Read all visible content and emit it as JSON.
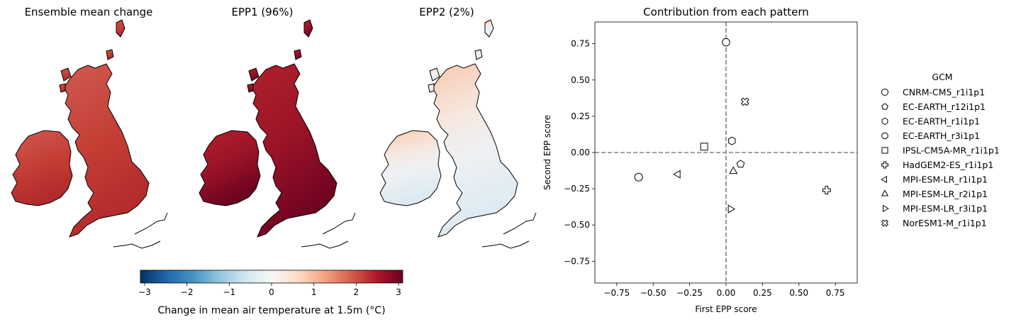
{
  "maps": [
    {
      "title": "Ensemble mean change",
      "fill": "#c0392f",
      "gradient": "mean"
    },
    {
      "title": "EPP1 (96%)",
      "fill": "#9e1428",
      "gradient": "epp1"
    },
    {
      "title": "EPP2 (2%)",
      "fill": "#f2f0ef",
      "gradient": "epp2"
    }
  ],
  "colorbar": {
    "label": "Change in mean air temperature at 1.5m (°C)",
    "ticks": [
      "−3",
      "−2",
      "−1",
      "0",
      "1",
      "2",
      "3"
    ],
    "range": [
      -3.1,
      3.1
    ],
    "colors": [
      "#053061",
      "#2166ac",
      "#4393c3",
      "#92c5de",
      "#d1e5f0",
      "#f7f7f7",
      "#fddbc7",
      "#f4a582",
      "#d6604d",
      "#b2182b",
      "#67001f"
    ]
  },
  "chart_data": {
    "type": "scatter",
    "title": "Contribution from each pattern",
    "xlabel": "First EPP score",
    "ylabel": "Second EPP score",
    "xlim": [
      -0.9,
      0.9
    ],
    "ylim": [
      -0.9,
      0.9
    ],
    "xticks": [
      "−0.75",
      "−0.50",
      "−0.25",
      "0.00",
      "0.25",
      "0.50",
      "0.75"
    ],
    "yticks": [
      "0.75",
      "0.50",
      "0.25",
      "0.00",
      "−0.25",
      "−0.50",
      "−0.75"
    ],
    "xtick_values": [
      -0.75,
      -0.5,
      -0.25,
      0,
      0.25,
      0.5,
      0.75
    ],
    "ytick_values": [
      0.75,
      0.5,
      0.25,
      0,
      -0.25,
      -0.5,
      -0.75
    ],
    "grid": false,
    "reference_lines": {
      "x": 0,
      "y": 0,
      "style": "dashed",
      "color": "#808080"
    },
    "legend": {
      "title": "GCM",
      "placement": "outside-right"
    },
    "series": [
      {
        "name": "CNRM-CM5_r1i1p1",
        "marker": "circle",
        "x": -0.6,
        "y": -0.17
      },
      {
        "name": "EC-EARTH_r12i1p1",
        "marker": "pentagon",
        "x": 0.1,
        "y": -0.08
      },
      {
        "name": "EC-EARTH_r1i1p1",
        "marker": "hexagon",
        "x": 0.04,
        "y": 0.08
      },
      {
        "name": "EC-EARTH_r3i1p1",
        "marker": "octagon",
        "x": 0.0,
        "y": 0.76
      },
      {
        "name": "IPSL-CM5A-MR_r1i1p1",
        "marker": "square",
        "x": -0.15,
        "y": 0.04
      },
      {
        "name": "HadGEM2-ES_r1i1p1",
        "marker": "plus",
        "x": 0.69,
        "y": -0.26
      },
      {
        "name": "MPI-ESM-LR_r1i1p1",
        "marker": "triangle-left",
        "x": -0.33,
        "y": -0.15
      },
      {
        "name": "MPI-ESM-LR_r2i1p1",
        "marker": "triangle-up",
        "x": 0.05,
        "y": -0.13
      },
      {
        "name": "MPI-ESM-LR_r3i1p1",
        "marker": "triangle-right",
        "x": 0.03,
        "y": -0.39
      },
      {
        "name": "NorESM1-M_r1i1p1",
        "marker": "x-filled",
        "x": 0.13,
        "y": 0.35
      }
    ]
  }
}
